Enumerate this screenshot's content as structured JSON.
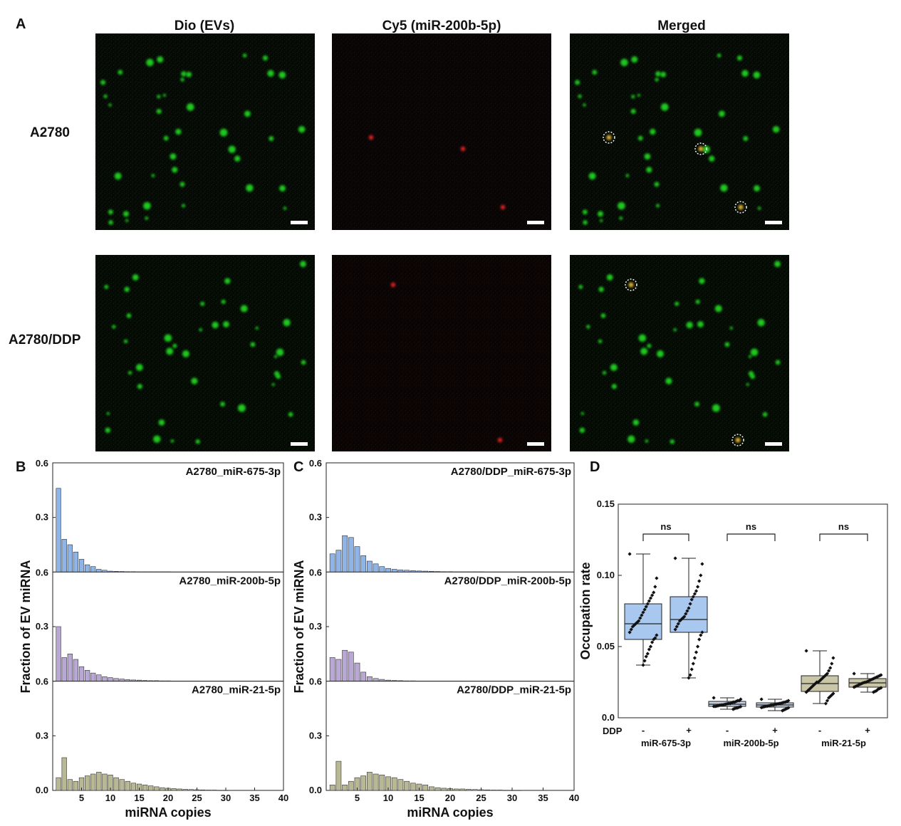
{
  "figure": {
    "panel_labels": {
      "a": "A",
      "b": "B",
      "c": "C",
      "d": "D"
    },
    "microscopy": {
      "columns": [
        "Dio (EVs)",
        "Cy5 (miR-200b-5p)",
        "Merged"
      ],
      "rows": [
        "A2780",
        "A2780/DDP"
      ],
      "channel_colors": {
        "dio": "#22dd22",
        "cy5": "#dd2222",
        "merged_coloc": "#e0b030",
        "background": "#050805"
      },
      "green_spots_per_image": 40,
      "red_spots": {
        "A2780": 3,
        "A2780/DDP": 2
      },
      "colocalized_circled": {
        "A2780": 3,
        "A2780/DDP": 2
      }
    },
    "shared_y_title": "Fraction of  EV miRNA",
    "shared_x_title": "miRNA copies"
  },
  "chart_data": [
    {
      "panel": "B",
      "type": "bar",
      "xlabel": "miRNA copies",
      "ylabel": "Fraction of  EV miRNA",
      "xlim": [
        0,
        40
      ],
      "xticks": [
        "5",
        "10",
        "15",
        "20",
        "25",
        "30",
        "35",
        "40"
      ],
      "ylim": [
        0,
        0.6
      ],
      "yticks_per_subplot": [
        "0.0",
        "0.3",
        "0.6"
      ],
      "subplots": [
        {
          "name": "A2780_miR-675-3p",
          "color": "#8fb4e8",
          "x": [
            1,
            2,
            3,
            4,
            5,
            6,
            7,
            8,
            9,
            10,
            11,
            12,
            13,
            14,
            15,
            16,
            17,
            18,
            19,
            20
          ],
          "values": [
            0.46,
            0.18,
            0.15,
            0.11,
            0.07,
            0.04,
            0.03,
            0.015,
            0.01,
            0.005,
            0.004,
            0.003,
            0.002,
            0.002,
            0.001,
            0.001,
            0.001,
            0.001,
            0.001,
            0.001
          ]
        },
        {
          "name": "A2780_miR-200b-5p",
          "color": "#b9a8d4",
          "x": [
            1,
            2,
            3,
            4,
            5,
            6,
            7,
            8,
            9,
            10,
            11,
            12,
            13,
            14,
            15,
            16,
            17,
            18,
            19,
            20,
            21,
            22,
            23,
            24,
            25
          ],
          "values": [
            0.3,
            0.13,
            0.15,
            0.12,
            0.08,
            0.06,
            0.045,
            0.035,
            0.025,
            0.02,
            0.015,
            0.012,
            0.009,
            0.007,
            0.006,
            0.004,
            0.003,
            0.003,
            0.002,
            0.002,
            0.001,
            0.001,
            0.001,
            0.001,
            0.001
          ]
        },
        {
          "name": "A2780_miR-21-5p",
          "color": "#b8b894",
          "x": [
            1,
            2,
            3,
            4,
            5,
            6,
            7,
            8,
            9,
            10,
            11,
            12,
            13,
            14,
            15,
            16,
            17,
            18,
            19,
            20,
            21,
            22,
            23,
            24,
            25,
            26,
            27,
            28,
            29,
            30
          ],
          "values": [
            0.07,
            0.18,
            0.06,
            0.05,
            0.07,
            0.08,
            0.09,
            0.1,
            0.09,
            0.085,
            0.07,
            0.06,
            0.05,
            0.04,
            0.035,
            0.03,
            0.025,
            0.02,
            0.015,
            0.012,
            0.01,
            0.008,
            0.006,
            0.005,
            0.004,
            0.003,
            0.002,
            0.002,
            0.001,
            0.001
          ]
        }
      ]
    },
    {
      "panel": "C",
      "type": "bar",
      "xlabel": "miRNA copies",
      "ylabel": "Fraction of  EV miRNA",
      "xlim": [
        0,
        40
      ],
      "xticks": [
        "5",
        "10",
        "15",
        "20",
        "25",
        "30",
        "35",
        "40"
      ],
      "ylim": [
        0,
        0.6
      ],
      "yticks_per_subplot": [
        "0.0",
        "0.3",
        "0.6"
      ],
      "subplots": [
        {
          "name": "A2780/DDP_miR-675-3p",
          "color": "#8fb4e8",
          "x": [
            1,
            2,
            3,
            4,
            5,
            6,
            7,
            8,
            9,
            10,
            11,
            12,
            13,
            14,
            15,
            16,
            17,
            18,
            19,
            20,
            21,
            22,
            23,
            24,
            25
          ],
          "values": [
            0.1,
            0.12,
            0.2,
            0.19,
            0.14,
            0.09,
            0.06,
            0.045,
            0.03,
            0.02,
            0.015,
            0.012,
            0.01,
            0.008,
            0.006,
            0.005,
            0.004,
            0.003,
            0.002,
            0.002,
            0.001,
            0.001,
            0.001,
            0.001,
            0.001
          ]
        },
        {
          "name": "A2780/DDP_miR-200b-5p",
          "color": "#b9a8d4",
          "x": [
            1,
            2,
            3,
            4,
            5,
            6,
            7,
            8,
            9,
            10,
            11,
            12,
            13,
            14,
            15,
            16,
            17,
            18,
            19,
            20,
            21,
            22
          ],
          "values": [
            0.13,
            0.12,
            0.17,
            0.16,
            0.1,
            0.05,
            0.025,
            0.015,
            0.01,
            0.006,
            0.004,
            0.003,
            0.002,
            0.002,
            0.001,
            0.001,
            0.001,
            0.001,
            0.001,
            0.001,
            0.001,
            0.001
          ]
        },
        {
          "name": "A2780/DDP_miR-21-5p",
          "color": "#b8b894",
          "x": [
            1,
            2,
            3,
            4,
            5,
            6,
            7,
            8,
            9,
            10,
            11,
            12,
            13,
            14,
            15,
            16,
            17,
            18,
            19,
            20,
            21,
            22,
            23,
            24,
            25,
            26,
            27,
            28,
            29,
            30,
            31
          ],
          "values": [
            0.03,
            0.16,
            0.03,
            0.05,
            0.07,
            0.08,
            0.1,
            0.09,
            0.085,
            0.075,
            0.07,
            0.06,
            0.05,
            0.04,
            0.035,
            0.03,
            0.02,
            0.015,
            0.012,
            0.01,
            0.008,
            0.008,
            0.006,
            0.005,
            0.004,
            0.003,
            0.002,
            0.002,
            0.001,
            0.001,
            0.001
          ]
        }
      ]
    },
    {
      "panel": "D",
      "type": "box",
      "ylabel": "Occupation rate",
      "ylim": [
        0,
        0.15
      ],
      "yticks": [
        "0.0",
        "0.05",
        "0.10",
        "0.15"
      ],
      "x_prefix": "DDP",
      "groups": [
        {
          "name": "miR-675-3p",
          "color": "#a8c8f0",
          "significance": "ns",
          "boxes": [
            {
              "ddp": "-",
              "min": 0.037,
              "q1": 0.055,
              "median": 0.066,
              "q3": 0.08,
              "max": 0.115,
              "points": [
                0.115,
                0.098,
                0.092,
                0.088,
                0.086,
                0.084,
                0.082,
                0.08,
                0.078,
                0.076,
                0.074,
                0.072,
                0.07,
                0.068,
                0.067,
                0.066,
                0.065,
                0.064,
                0.062,
                0.06,
                0.058,
                0.056,
                0.055,
                0.053,
                0.05,
                0.048,
                0.045,
                0.043,
                0.04,
                0.037
              ]
            },
            {
              "ddp": "+",
              "min": 0.028,
              "q1": 0.06,
              "median": 0.069,
              "q3": 0.085,
              "max": 0.112,
              "points": [
                0.112,
                0.108,
                0.1,
                0.096,
                0.092,
                0.089,
                0.087,
                0.085,
                0.083,
                0.08,
                0.077,
                0.075,
                0.073,
                0.071,
                0.07,
                0.069,
                0.068,
                0.066,
                0.064,
                0.062,
                0.06,
                0.058,
                0.055,
                0.05,
                0.046,
                0.042,
                0.038,
                0.034,
                0.03,
                0.028
              ]
            }
          ]
        },
        {
          "name": "miR-200b-5p",
          "color": "#c6d2e6",
          "significance": "ns",
          "boxes": [
            {
              "ddp": "-",
              "min": 0.006,
              "q1": 0.008,
              "median": 0.0095,
              "q3": 0.0115,
              "max": 0.014,
              "points": [
                0.014,
                0.013,
                0.012,
                0.012,
                0.0115,
                0.011,
                0.011,
                0.0105,
                0.01,
                0.01,
                0.0098,
                0.0095,
                0.0093,
                0.009,
                0.009,
                0.0088,
                0.0085,
                0.0082,
                0.008,
                0.008,
                0.0078,
                0.0075,
                0.007,
                0.0068,
                0.0065,
                0.006
              ]
            },
            {
              "ddp": "+",
              "min": 0.005,
              "q1": 0.0075,
              "median": 0.009,
              "q3": 0.0105,
              "max": 0.013,
              "points": [
                0.013,
                0.012,
                0.0115,
                0.011,
                0.0108,
                0.0105,
                0.0102,
                0.01,
                0.0098,
                0.0095,
                0.0093,
                0.009,
                0.009,
                0.0088,
                0.0085,
                0.0082,
                0.008,
                0.0078,
                0.0075,
                0.0072,
                0.007,
                0.0065,
                0.006,
                0.0055,
                0.005
              ]
            }
          ]
        },
        {
          "name": "miR-21-5p",
          "color": "#c9c6a8",
          "significance": "ns",
          "boxes": [
            {
              "ddp": "-",
              "min": 0.01,
              "q1": 0.0185,
              "median": 0.024,
              "q3": 0.0295,
              "max": 0.047,
              "points": [
                0.047,
                0.042,
                0.038,
                0.035,
                0.033,
                0.031,
                0.03,
                0.029,
                0.028,
                0.027,
                0.026,
                0.025,
                0.025,
                0.024,
                0.023,
                0.022,
                0.021,
                0.02,
                0.019,
                0.018,
                0.017,
                0.016,
                0.015,
                0.014,
                0.012,
                0.01
              ]
            },
            {
              "ddp": "+",
              "min": 0.018,
              "q1": 0.0215,
              "median": 0.0245,
              "q3": 0.0275,
              "max": 0.031,
              "points": [
                0.031,
                0.03,
                0.0295,
                0.029,
                0.0285,
                0.028,
                0.0275,
                0.027,
                0.0265,
                0.026,
                0.0255,
                0.025,
                0.0248,
                0.0245,
                0.024,
                0.0235,
                0.023,
                0.0225,
                0.022,
                0.0215,
                0.021,
                0.0205,
                0.02,
                0.019,
                0.0185,
                0.018
              ]
            }
          ]
        }
      ]
    }
  ]
}
